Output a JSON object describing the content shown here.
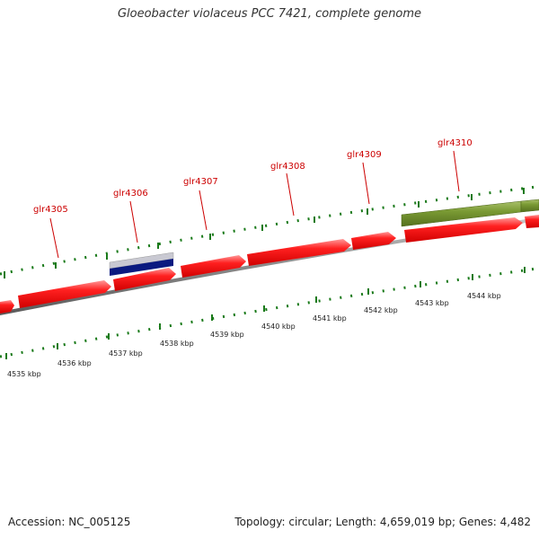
{
  "title": "Gloeobacter violaceus PCC 7421, complete genome",
  "footer": {
    "accession": "Accession: NC_005125",
    "summary": "Topology: circular; Length: 4,659,019 bp; Genes: 4,482"
  },
  "colors": {
    "forward_gene": "#ee0000",
    "reverse_gene": "#0a1a80",
    "green_feature": "#6f8c2b",
    "backbone": "#888888",
    "tick": "#1a7a1a",
    "gene_label": "#cc0000"
  },
  "gene_labels": [
    {
      "name": "glr4305"
    },
    {
      "name": "glr4306"
    },
    {
      "name": "glr4307"
    },
    {
      "name": "glr4308"
    },
    {
      "name": "glr4309"
    },
    {
      "name": "glr4310"
    }
  ],
  "kbp_labels": [
    "4535 kbp",
    "4536 kbp",
    "4537 kbp",
    "4538 kbp",
    "4539 kbp",
    "4540 kbp",
    "4541 kbp",
    "4542 kbp",
    "4543 kbp",
    "4544 kbp"
  ]
}
